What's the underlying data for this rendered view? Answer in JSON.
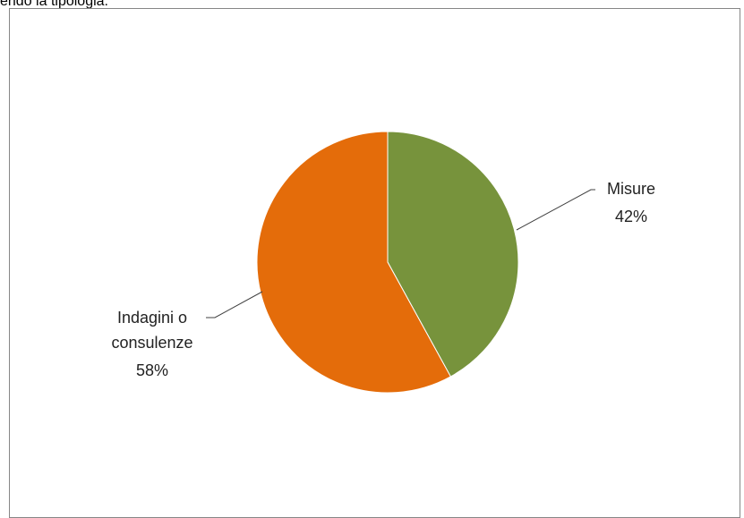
{
  "caption": "endo la tipologia:",
  "chart_data": {
    "type": "pie",
    "title": "",
    "series": [
      {
        "slices": [
          {
            "label": "Misure",
            "value": 42,
            "value_text": "42%",
            "color": "#77933C"
          },
          {
            "label": "Indagini o consulenze",
            "value": 58,
            "value_text": "58%",
            "color": "#E46C0A"
          }
        ]
      }
    ],
    "start_angle_deg": 0,
    "direction": "clockwise",
    "legend": "none",
    "data_labels": "outside with leader lines"
  }
}
